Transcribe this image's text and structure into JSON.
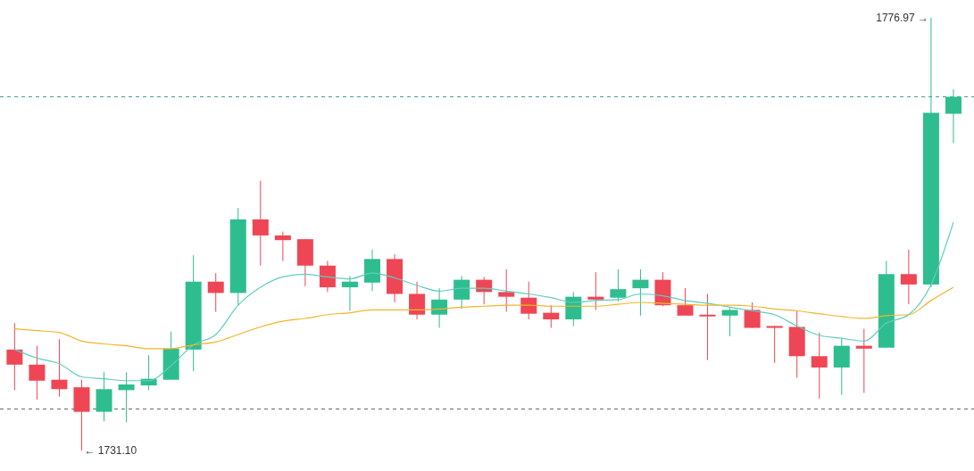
{
  "chart_data": {
    "type": "candlestick",
    "categories": [
      null,
      null,
      null,
      null,
      null,
      null,
      null,
      null,
      null,
      null,
      null,
      null,
      null,
      null,
      null,
      null,
      null,
      null,
      null,
      null,
      null,
      null,
      null,
      null,
      null,
      null,
      null,
      null,
      null,
      null,
      null,
      null,
      null,
      null,
      null,
      null,
      null,
      null,
      null,
      null,
      null,
      null,
      null
    ],
    "ohlc": [
      [
        1741.8,
        1744.6,
        1737.5,
        1740.2
      ],
      [
        1740.2,
        1742.2,
        1736.5,
        1738.5
      ],
      [
        1738.6,
        1742.9,
        1736.8,
        1737.6
      ],
      [
        1737.8,
        1738.6,
        1731.1,
        1735.2
      ],
      [
        1735.2,
        1739.4,
        1734.2,
        1737.6
      ],
      [
        1737.5,
        1739.4,
        1734.1,
        1738.1
      ],
      [
        1738.0,
        1741.2,
        1737.5,
        1738.7
      ],
      [
        1738.6,
        1743.7,
        1738.6,
        1741.9
      ],
      [
        1741.8,
        1751.8,
        1739.5,
        1749.0
      ],
      [
        1749.0,
        1749.9,
        1745.8,
        1747.8
      ],
      [
        1747.8,
        1756.8,
        1746.5,
        1755.6
      ],
      [
        1755.6,
        1759.7,
        1750.7,
        1753.9
      ],
      [
        1753.9,
        1754.3,
        1751.2,
        1753.4
      ],
      [
        1753.5,
        1753.5,
        1748.5,
        1750.7
      ],
      [
        1750.7,
        1751.2,
        1747.9,
        1748.4
      ],
      [
        1748.4,
        1749.6,
        1745.9,
        1749.0
      ],
      [
        1748.9,
        1752.4,
        1748.0,
        1751.4
      ],
      [
        1751.4,
        1751.9,
        1746.8,
        1747.7
      ],
      [
        1747.7,
        1749.0,
        1745.0,
        1745.5
      ],
      [
        1745.5,
        1748.3,
        1744.1,
        1747.1
      ],
      [
        1747.1,
        1749.6,
        1746.1,
        1749.2
      ],
      [
        1749.2,
        1749.5,
        1746.6,
        1747.9
      ],
      [
        1747.9,
        1750.3,
        1745.8,
        1747.4
      ],
      [
        1747.3,
        1749.0,
        1745.0,
        1745.6
      ],
      [
        1745.7,
        1746.5,
        1744.1,
        1745.0
      ],
      [
        1745.0,
        1747.9,
        1744.3,
        1747.4
      ],
      [
        1747.4,
        1750.0,
        1746.0,
        1747.1
      ],
      [
        1747.3,
        1750.3,
        1746.9,
        1748.2
      ],
      [
        1748.3,
        1750.3,
        1745.4,
        1749.2
      ],
      [
        1749.2,
        1750.0,
        1746.4,
        1746.5
      ],
      [
        1746.5,
        1748.3,
        1745.4,
        1745.4
      ],
      [
        1745.5,
        1747.7,
        1740.7,
        1745.4
      ],
      [
        1745.4,
        1746.2,
        1743.2,
        1746.0
      ],
      [
        1746.0,
        1746.8,
        1744.1,
        1744.1
      ],
      [
        1744.3,
        1744.3,
        1740.4,
        1744.1
      ],
      [
        1744.2,
        1745.9,
        1738.8,
        1741.1
      ],
      [
        1741.1,
        1743.6,
        1736.6,
        1739.9
      ],
      [
        1739.9,
        1743.0,
        1737.0,
        1742.2
      ],
      [
        1742.2,
        1744.0,
        1737.2,
        1741.9
      ],
      [
        1742.0,
        1751.2,
        1742.0,
        1749.8
      ],
      [
        1749.8,
        1752.4,
        1746.6,
        1748.7
      ],
      [
        1748.7,
        1776.97,
        1748.4,
        1766.9
      ],
      [
        1766.8,
        1769.4,
        1763.7,
        1768.6
      ]
    ],
    "colors": [
      "#ef4655",
      "#ef4655",
      "#ef4655",
      "#ef4655",
      "#2ebd8f",
      "#2ebd8f",
      "#2ebd8f",
      "#2ebd8f",
      "#2ebd8f",
      "#ef4655",
      "#2ebd8f",
      "#ef4655",
      "#ef4655",
      "#ef4655",
      "#ef4655",
      "#2ebd8f",
      "#2ebd8f",
      "#ef4655",
      "#ef4655",
      "#2ebd8f",
      "#2ebd8f",
      "#ef4655",
      "#ef4655",
      "#ef4655",
      "#ef4655",
      "#2ebd8f",
      "#ef4655",
      "#2ebd8f",
      "#2ebd8f",
      "#ef4655",
      "#ef4655",
      "#ef4655",
      "#2ebd8f",
      "#ef4655",
      "#ef4655",
      "#ef4655",
      "#ef4655",
      "#2ebd8f",
      "#ef4655",
      "#2ebd8f",
      "#ef4655",
      "#2ebd8f",
      "#2ebd8f"
    ],
    "series": [
      {
        "type": "line",
        "color": "#5fcdbf",
        "values": [
          1741.8,
          1740.9,
          1740.3,
          1738.9,
          1738.7,
          1738.5,
          1738.5,
          1740.1,
          1742.3,
          1743.4,
          1746.5,
          1748.4,
          1749.5,
          1749.8,
          1749.5,
          1749.3,
          1749.9,
          1749.4,
          1748.6,
          1748.0,
          1748.3,
          1748.3,
          1748.0,
          1747.7,
          1747.3,
          1746.8,
          1747.0,
          1747.1,
          1747.7,
          1747.5,
          1747.0,
          1746.7,
          1746.3,
          1745.9,
          1745.5,
          1744.3,
          1743.3,
          1743.0,
          1742.7,
          1744.6,
          1745.5,
          1748.7,
          1755.3
        ]
      },
      {
        "type": "line",
        "color": "#f2b52a",
        "values": [
          1744.0,
          1743.8,
          1743.6,
          1742.7,
          1742.4,
          1742.2,
          1741.9,
          1741.9,
          1742.3,
          1742.6,
          1743.4,
          1744.2,
          1744.8,
          1745.1,
          1745.5,
          1745.7,
          1746.0,
          1746.0,
          1746.0,
          1746.1,
          1746.3,
          1746.4,
          1746.5,
          1746.5,
          1746.4,
          1746.4,
          1746.4,
          1746.6,
          1746.8,
          1746.7,
          1746.6,
          1746.5,
          1746.5,
          1746.4,
          1746.1,
          1745.9,
          1745.6,
          1745.3,
          1745.1,
          1745.4,
          1745.5,
          1747.0,
          1748.4
        ]
      }
    ],
    "ref_lines": [
      {
        "axis": "y",
        "value": 1768.6,
        "color": "#4a9a9a",
        "line_style": "dashed"
      },
      {
        "axis": "y",
        "value": 1735.5,
        "color": "#666666",
        "line_style": "dashed"
      }
    ],
    "annotations": [
      "1776.97 →",
      "← 1731.10"
    ]
  }
}
